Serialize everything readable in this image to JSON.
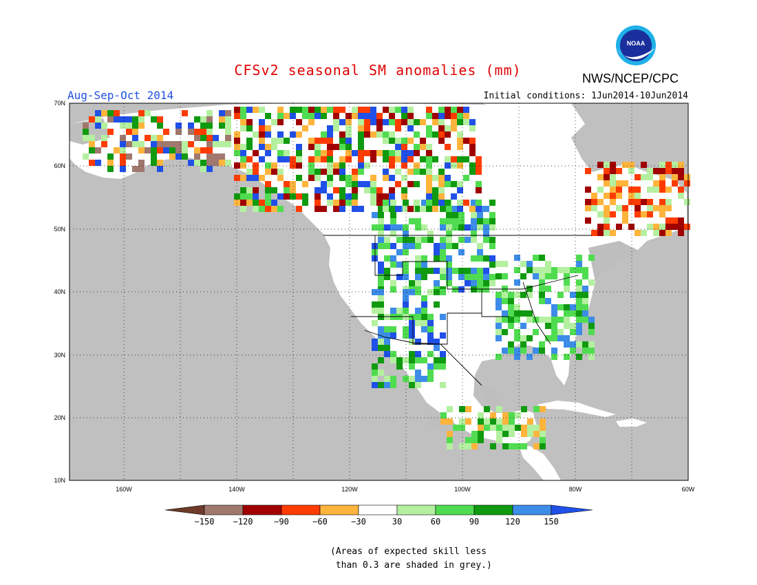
{
  "title": "CFSv2 seasonal SM anomalies (mm)",
  "season": "Aug-Sep-Oct 2014",
  "agency": "NWS/NCEP/CPC",
  "logo_text": "NOAA",
  "initial_conditions": "Initial conditions: 1Jun2014-10Jun2014",
  "lat_labels": [
    "70N",
    "60N",
    "50N",
    "40N",
    "30N",
    "20N",
    "10N"
  ],
  "lon_labels": [
    "160W",
    "140W",
    "120W",
    "100W",
    "80W",
    "60W"
  ],
  "legend": {
    "labels": [
      "-150",
      "-120",
      "-90",
      "-60",
      "-30",
      "30",
      "60",
      "90",
      "120",
      "150"
    ],
    "colors": [
      "#6e3b2a",
      "#a0786e",
      "#a00000",
      "#ff3c00",
      "#ffb43c",
      "#ffffff",
      "#b4f0a0",
      "#50dc50",
      "#109a10",
      "#3c8ce8",
      "#2050e8"
    ]
  },
  "note": "(Areas of expected skill less\n than 0.3 are shaded in grey.)",
  "colors": {
    "ocean": "#c0c0c0",
    "no_skill_grey": "#bebebe",
    "title_red": "#e00000",
    "season_blue": "#2050e0"
  }
}
